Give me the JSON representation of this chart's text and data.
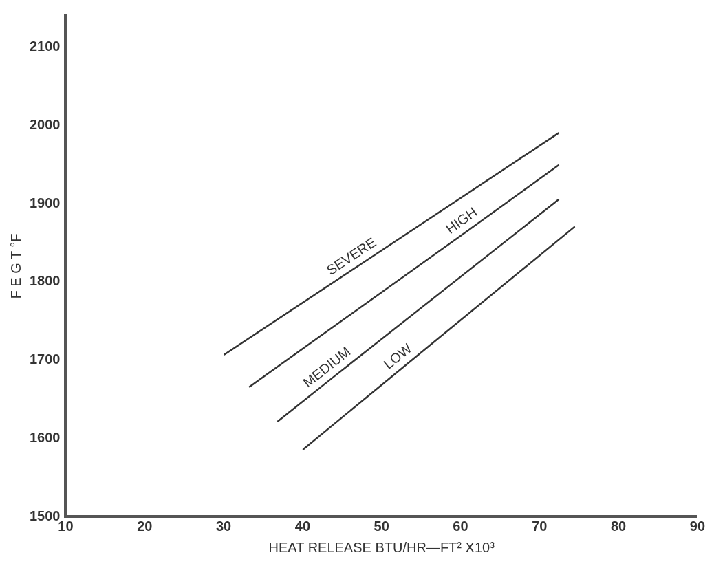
{
  "chart_data": {
    "type": "line",
    "xlabel": "HEAT RELEASE BTU/HR—FT² X10³",
    "ylabel": "F E G T °F",
    "xlim": [
      10,
      90
    ],
    "xticks": [
      10,
      20,
      30,
      40,
      50,
      60,
      70,
      80,
      90
    ],
    "ylim": [
      1500,
      2140
    ],
    "yticks": [
      1500,
      1600,
      1700,
      1800,
      1900,
      2000,
      2100
    ],
    "grid": false,
    "legend": false,
    "marker": "none",
    "line_style": "solid",
    "series": [
      {
        "name": "SEVERE",
        "color": "#333333",
        "x": [
          30.1,
          47,
          72.4
        ],
        "values": [
          1707,
          1820,
          1990
        ]
      },
      {
        "name": "HIGH",
        "color": "#333333",
        "x": [
          33.3,
          61,
          72.4
        ],
        "values": [
          1666,
          1866,
          1949
        ]
      },
      {
        "name": "MEDIUM",
        "color": "#333333",
        "x": [
          36.9,
          44,
          72.4
        ],
        "values": [
          1622,
          1679,
          1905
        ]
      },
      {
        "name": "LOW",
        "color": "#333333",
        "x": [
          40.1,
          53,
          74.4
        ],
        "values": [
          1586,
          1693,
          1870
        ]
      }
    ]
  }
}
